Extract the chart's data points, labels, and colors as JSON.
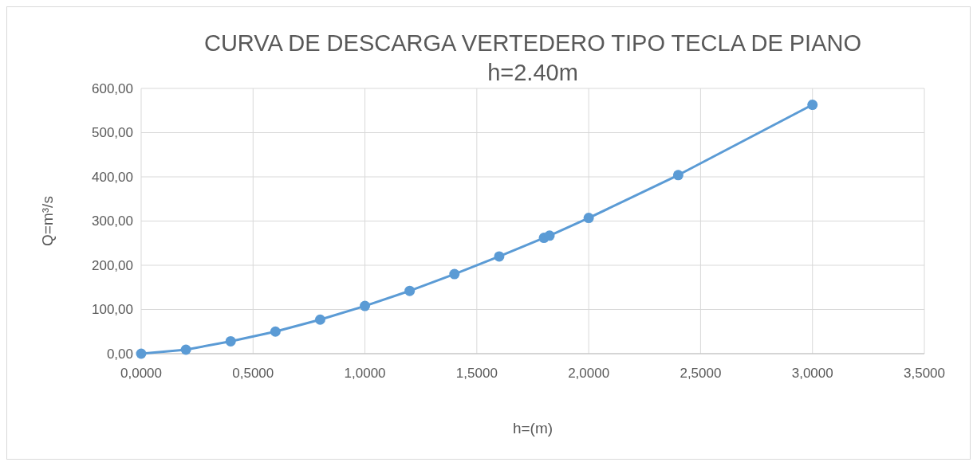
{
  "chart_data": {
    "type": "line",
    "title": "CURVA DE DESCARGA VERTEDERO TIPO TECLA DE PIANO",
    "subtitle": "h=2.40m",
    "xlabel": "h=(m)",
    "ylabel": "Q=m³/s",
    "x": [
      0,
      0.2,
      0.4,
      0.6,
      0.8,
      1.0,
      1.2,
      1.4,
      1.6,
      1.8,
      1.825,
      2.0,
      2.4,
      3.0
    ],
    "series": [
      {
        "color": "#5b9bd5",
        "values": [
          0,
          9,
          28,
          50,
          77,
          108,
          142,
          180,
          220,
          262,
          267,
          307,
          404,
          563
        ]
      }
    ],
    "xlim": [
      0,
      3.5
    ],
    "ylim": [
      0,
      600
    ],
    "xticks": [
      {
        "value": 0,
        "label": "0,0000"
      },
      {
        "value": 0.5,
        "label": "0,5000"
      },
      {
        "value": 1,
        "label": "1,0000"
      },
      {
        "value": 1.5,
        "label": "1,5000"
      },
      {
        "value": 2,
        "label": "2,0000"
      },
      {
        "value": 2.5,
        "label": "2,5000"
      },
      {
        "value": 3,
        "label": "3,0000"
      },
      {
        "value": 3.5,
        "label": "3,5000"
      }
    ],
    "yticks": [
      {
        "value": 0,
        "label": "0,00"
      },
      {
        "value": 100,
        "label": "100,00"
      },
      {
        "value": 200,
        "label": "200,00"
      },
      {
        "value": 300,
        "label": "300,00"
      },
      {
        "value": 400,
        "label": "400,00"
      },
      {
        "value": 500,
        "label": "500,00"
      },
      {
        "value": 600,
        "label": "600,00"
      }
    ],
    "grid": true,
    "marker": "circle",
    "line_style": "solid"
  }
}
